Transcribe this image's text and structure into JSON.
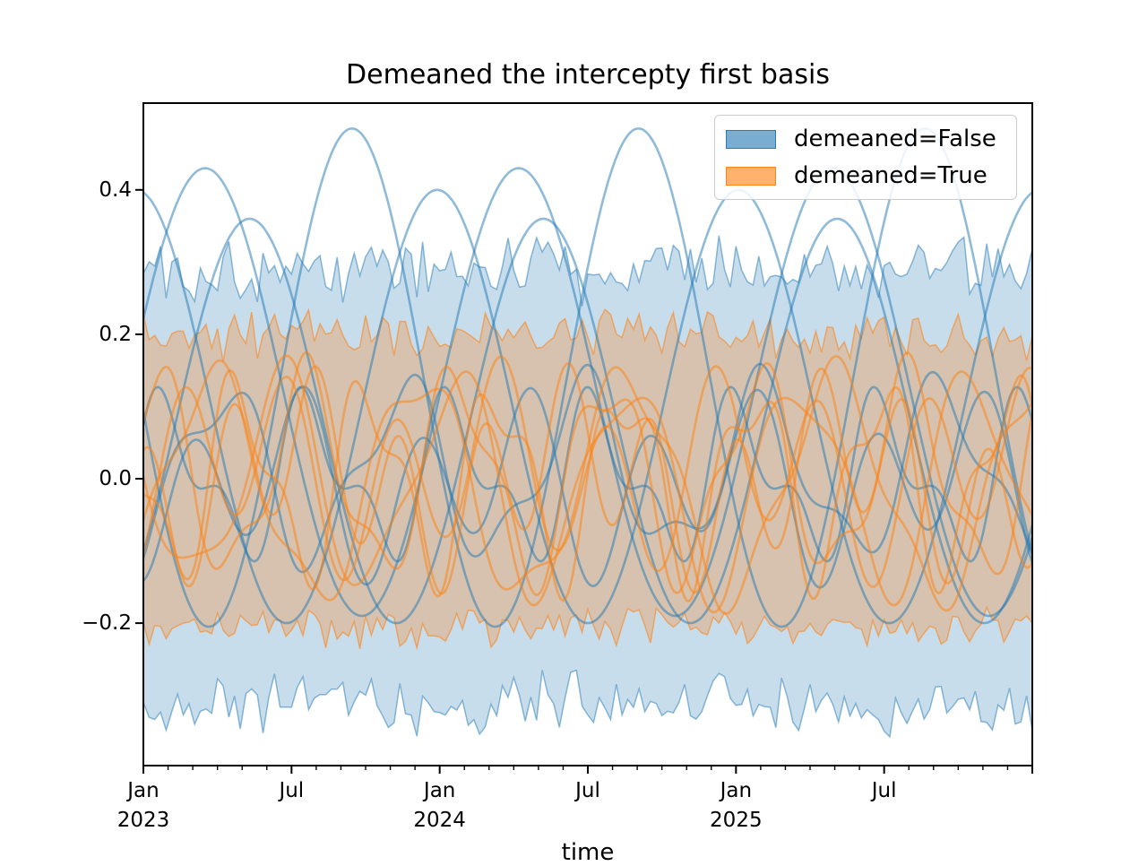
{
  "figure": {
    "background": "#ffffff"
  },
  "chart_data": {
    "type": "line",
    "title": "Demeaned the intercepty first basis",
    "xlabel": "time",
    "ylabel": "",
    "grid": false,
    "x_unit": "months since 2023-01-01",
    "x_range_months": [
      0,
      36
    ],
    "ylim": [
      -0.397,
      0.52
    ],
    "y_ticks": [
      {
        "value": 0.4,
        "label": "0.4"
      },
      {
        "value": 0.2,
        "label": "0.2"
      },
      {
        "value": 0.0,
        "label": "0.0"
      },
      {
        "value": -0.2,
        "label": "−0.2"
      }
    ],
    "x_major_ticks": [
      {
        "month": 0,
        "label": "Jan",
        "year": "2023"
      },
      {
        "month": 6,
        "label": "Jul",
        "year": ""
      },
      {
        "month": 12,
        "label": "Jan",
        "year": "2024"
      },
      {
        "month": 18,
        "label": "Jul",
        "year": ""
      },
      {
        "month": 24,
        "label": "Jan",
        "year": "2025"
      },
      {
        "month": 30,
        "label": "Jul",
        "year": ""
      },
      {
        "month": 36,
        "label": "",
        "year": ""
      }
    ],
    "x_minor_tick_every_months": 1,
    "colors": {
      "blue": "#1f77b4",
      "orange": "#ff7f0e",
      "spine": "#000000",
      "legend_border": "#cccccc"
    },
    "legend": {
      "position": "upper right",
      "entries": [
        {
          "label": "demeaned=False",
          "fill": "rgba(31,119,180,0.6)",
          "border": "rgba(31,119,180,0.9)"
        },
        {
          "label": "demeaned=True",
          "fill": "rgba(255,127,14,0.6)",
          "border": "rgba(255,127,14,0.9)"
        }
      ]
    },
    "bands": [
      {
        "name": "demeaned=False",
        "fill": "rgba(31,119,180,0.25)",
        "edge": "rgba(31,119,180,0.5)",
        "points": 157,
        "upper": {
          "mean": 0.29,
          "noise": 0.032,
          "seed": 101
        },
        "lower": {
          "mean": -0.315,
          "noise": 0.03,
          "seed": 202
        }
      },
      {
        "name": "demeaned=True",
        "fill": "rgba(255,127,14,0.28)",
        "edge": "rgba(255,127,14,0.55)",
        "points": 157,
        "upper": {
          "mean": 0.198,
          "noise": 0.022,
          "seed": 303
        },
        "lower": {
          "mean": -0.207,
          "noise": 0.018,
          "seed": 404
        }
      }
    ],
    "curves": [
      {
        "group": "demeaned=False",
        "color": "rgba(31,119,180,0.5)",
        "width": 2.6,
        "mean": 0.14,
        "parts": [
          [
            0.345,
            11.6,
            8.45
          ]
        ]
      },
      {
        "group": "demeaned=False",
        "color": "rgba(31,119,180,0.5)",
        "width": 2.6,
        "mean": 0.12,
        "parts": [
          [
            0.31,
            12.7,
            2.5
          ]
        ]
      },
      {
        "group": "demeaned=False",
        "color": "rgba(31,119,180,0.5)",
        "width": 2.6,
        "mean": 0.08,
        "parts": [
          [
            0.28,
            11.9,
            4.3
          ]
        ]
      },
      {
        "group": "demeaned=False",
        "color": "rgba(31,119,180,0.5)",
        "width": 2.6,
        "mean": 0.1,
        "parts": [
          [
            0.3,
            12.2,
            11.9
          ]
        ]
      },
      {
        "group": "demeaned=False",
        "color": "rgba(31,119,180,0.5)",
        "width": 2.6,
        "mean": 0.0,
        "parts": [
          [
            0.09,
            5.8,
            1.0
          ],
          [
            0.05,
            2.9,
            0.4
          ]
        ]
      },
      {
        "group": "demeaned=False",
        "color": "rgba(31,119,180,0.5)",
        "width": 2.6,
        "mean": 0.01,
        "parts": [
          [
            0.11,
            7.3,
            3.2
          ],
          [
            0.04,
            3.4,
            1.1
          ]
        ]
      },
      {
        "group": "demeaned=False",
        "color": "rgba(31,119,180,0.5)",
        "width": 2.6,
        "mean": -0.01,
        "parts": [
          [
            0.1,
            4.6,
            2.0
          ],
          [
            0.05,
            9.1,
            5.5
          ]
        ]
      },
      {
        "group": "demeaned=True",
        "color": "rgba(255,127,14,0.5)",
        "width": 2.6,
        "mean": 0.005,
        "parts": [
          [
            0.13,
            6.1,
            0.5
          ],
          [
            0.04,
            2.7,
            1.2
          ]
        ]
      },
      {
        "group": "demeaned=True",
        "color": "rgba(255,127,14,0.5)",
        "width": 2.6,
        "mean": -0.01,
        "parts": [
          [
            0.15,
            8.4,
            2.8
          ],
          [
            0.03,
            3.1,
            0.2
          ]
        ]
      },
      {
        "group": "demeaned=True",
        "color": "rgba(255,127,14,0.5)",
        "width": 2.6,
        "mean": 0.01,
        "parts": [
          [
            0.11,
            4.3,
            1.6
          ],
          [
            0.05,
            10.2,
            4.0
          ]
        ]
      },
      {
        "group": "demeaned=True",
        "color": "rgba(255,127,14,0.5)",
        "width": 2.6,
        "mean": 0.0,
        "parts": [
          [
            0.12,
            5.2,
            3.9
          ],
          [
            0.05,
            2.5,
            0.8
          ]
        ]
      },
      {
        "group": "demeaned=True",
        "color": "rgba(255,127,14,0.5)",
        "width": 2.6,
        "mean": -0.005,
        "parts": [
          [
            0.14,
            7.0,
            5.6
          ],
          [
            0.04,
            3.8,
            2.2
          ]
        ]
      },
      {
        "group": "demeaned=True",
        "color": "rgba(255,127,14,0.5)",
        "width": 2.6,
        "mean": 0.0,
        "parts": [
          [
            0.1,
            3.4,
            0.2
          ],
          [
            0.06,
            11.0,
            6.3
          ]
        ]
      }
    ]
  }
}
